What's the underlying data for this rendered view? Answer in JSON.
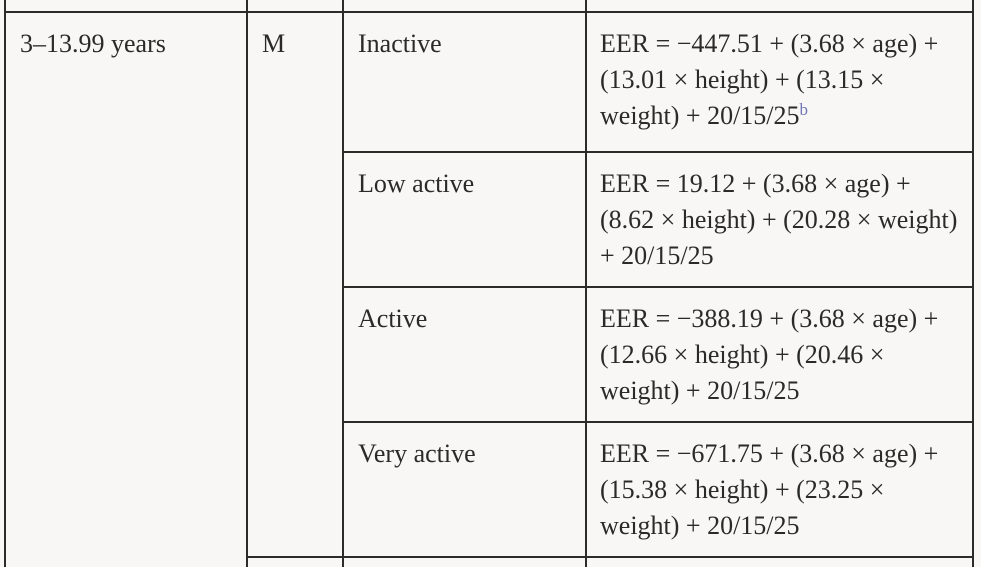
{
  "table": {
    "age_group": "3–13.99 years",
    "sex": "M",
    "rows": [
      {
        "activity": "Inactive",
        "equation": "EER = −447.51 + (3.68 × age) + (13.01 × height) + (13.15 × weight) + 20/15/25",
        "footnote": "b"
      },
      {
        "activity": "Low active",
        "equation": "EER = 19.12 + (3.68 × age) + (8.62 × height) + (20.28 × weight) + 20/15/25"
      },
      {
        "activity": "Active",
        "equation": "EER = −388.19 + (3.68 × age) + (12.66 × height) + (20.46 × weight) + 20/15/25"
      },
      {
        "activity": "Very active",
        "equation": "EER = −671.75 + (3.68 × age) + (15.38 × height) + (23.25 × weight) + 20/15/25"
      }
    ]
  }
}
